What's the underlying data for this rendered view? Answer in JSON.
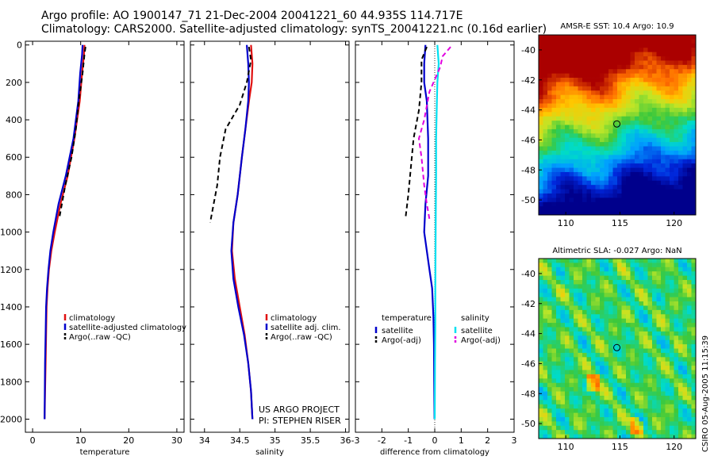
{
  "header": {
    "line1": "Argo profile: AO 1900147_71 21-Dec-2004 20041221_60 44.935S 114.717E",
    "line2": "Climatology: CARS2000. Satellite-adjusted climatology: synTS_20041221.nc (0.16d earlier)"
  },
  "side_stamp": "CSIRO 05-Aug-2005 11:15:39",
  "credit": {
    "line1": "US ARGO PROJECT",
    "line2": "PI: STEPHEN RISER"
  },
  "colors": {
    "red": "#e01010",
    "blue": "#0000cc",
    "black": "#000000",
    "cyan": "#00e0f0",
    "magenta": "#e000e0"
  },
  "chart_data": [
    {
      "type": "line",
      "xlabel": "temperature",
      "ylabel": "",
      "xlim": [
        -1.5,
        31.5
      ],
      "ylim": [
        2070,
        -20
      ],
      "y_reversed": true,
      "xticks": [
        0,
        10,
        20,
        30
      ],
      "yticks": [
        0,
        200,
        400,
        600,
        800,
        1000,
        1200,
        1400,
        1600,
        1800,
        2000
      ],
      "legend_position": "lower-left",
      "series": [
        {
          "name": "climatology",
          "color": "red",
          "style": "solid",
          "x": [
            10.8,
            10.7,
            10.3,
            9.8,
            8.7,
            7.3,
            5.8,
            4.6,
            3.9,
            3.4,
            3.1,
            2.9,
            2.8,
            2.7,
            2.6,
            2.5
          ],
          "y": [
            0,
            50,
            150,
            300,
            500,
            700,
            850,
            1000,
            1100,
            1200,
            1300,
            1400,
            1550,
            1700,
            1850,
            2000
          ]
        },
        {
          "name": "satellite-adjusted climatology",
          "color": "blue",
          "style": "solid",
          "x": [
            10.4,
            10.3,
            9.9,
            9.5,
            8.5,
            6.9,
            5.4,
            4.3,
            3.7,
            3.3,
            3.0,
            2.8,
            2.7,
            2.6,
            2.55,
            2.5
          ],
          "y": [
            0,
            50,
            150,
            300,
            500,
            700,
            850,
            1000,
            1100,
            1200,
            1300,
            1400,
            1550,
            1700,
            1850,
            2000
          ]
        },
        {
          "name": "Argo(..raw -QC)",
          "color": "black",
          "style": "dashed",
          "x": [
            11.0,
            10.8,
            10.4,
            9.6,
            9.0,
            8.1,
            6.8,
            5.6
          ],
          "y": [
            10,
            50,
            150,
            300,
            450,
            600,
            750,
            920
          ]
        }
      ]
    },
    {
      "type": "line",
      "xlabel": "salinity",
      "ylabel": "",
      "xlim": [
        33.8,
        36.05
      ],
      "ylim": [
        2070,
        -20
      ],
      "y_reversed": true,
      "xticks": [
        34,
        34.5,
        35,
        35.5,
        36
      ],
      "legend_position": "lower-right",
      "series": [
        {
          "name": "climatology",
          "color": "red",
          "style": "solid",
          "x": [
            34.66,
            34.68,
            34.67,
            34.63,
            34.58,
            34.53,
            34.47,
            34.41,
            34.39,
            34.43,
            34.5,
            34.57,
            34.62,
            34.66,
            34.68
          ],
          "y": [
            0,
            100,
            200,
            300,
            450,
            600,
            800,
            950,
            1100,
            1250,
            1400,
            1550,
            1700,
            1850,
            2000
          ]
        },
        {
          "name": "satellite adj. clim.",
          "color": "blue",
          "style": "solid",
          "x": [
            34.6,
            34.62,
            34.63,
            34.62,
            34.58,
            34.53,
            34.47,
            34.41,
            34.38,
            34.41,
            34.48,
            34.56,
            34.62,
            34.66,
            34.68
          ],
          "y": [
            0,
            100,
            200,
            300,
            450,
            600,
            800,
            950,
            1100,
            1250,
            1400,
            1550,
            1700,
            1850,
            2000
          ]
        },
        {
          "name": "Argo(..raw -QC)",
          "color": "black",
          "style": "dashed",
          "x": [
            34.63,
            34.66,
            34.6,
            34.5,
            34.3,
            34.22,
            34.18,
            34.13,
            34.08
          ],
          "y": [
            10,
            80,
            200,
            320,
            450,
            600,
            750,
            850,
            950
          ]
        }
      ]
    },
    {
      "type": "line",
      "xlabel": "difference from climatology",
      "ylabel": "",
      "xlim": [
        -3,
        3
      ],
      "ylim": [
        2070,
        -20
      ],
      "y_reversed": true,
      "xticks": [
        -3,
        -2,
        -1,
        0,
        1,
        2,
        3
      ],
      "zero_line": true,
      "legend_position": "lower-center",
      "series": [
        {
          "name": "satellite",
          "group": "temperature",
          "color": "blue",
          "style": "solid",
          "x": [
            -0.35,
            -0.4,
            -0.4,
            -0.3,
            -0.25,
            -0.25,
            -0.35,
            -0.4,
            -0.3,
            -0.2,
            -0.1,
            -0.05,
            -0.03,
            -0.02,
            -0.01
          ],
          "y": [
            0,
            100,
            200,
            300,
            500,
            700,
            850,
            1000,
            1100,
            1200,
            1300,
            1450,
            1600,
            1800,
            2000
          ]
        },
        {
          "name": "Argo(-adj)",
          "group": "temperature",
          "color": "black",
          "style": "dashed",
          "x": [
            -0.3,
            -0.5,
            -0.5,
            -0.6,
            -0.8,
            -0.9,
            -1.0,
            -1.1
          ],
          "y": [
            10,
            80,
            200,
            350,
            500,
            650,
            800,
            920
          ]
        },
        {
          "name": "satellite",
          "group": "salinity",
          "color": "cyan",
          "style": "solid",
          "x": [
            0.1,
            0.15,
            0.1,
            0.08,
            0.05,
            0.05,
            0.04,
            0.03,
            0.02,
            0.02,
            0.01,
            0.0
          ],
          "y": [
            0,
            100,
            200,
            300,
            500,
            700,
            900,
            1100,
            1300,
            1500,
            1700,
            2000
          ]
        },
        {
          "name": "Argo(-adj)",
          "group": "salinity",
          "color": "magenta",
          "style": "dashed",
          "x": [
            0.6,
            0.3,
            0.2,
            -0.2,
            -0.4,
            -0.6,
            -0.5,
            -0.4,
            -0.3,
            -0.2
          ],
          "y": [
            10,
            60,
            120,
            250,
            400,
            500,
            600,
            750,
            850,
            930
          ]
        }
      ]
    },
    {
      "type": "heatmap",
      "title": "AMSR-E SST: 10.4 Argo: 10.9",
      "xlim": [
        107.5,
        122
      ],
      "ylim": [
        -51,
        -39
      ],
      "xticks": [
        110,
        115,
        120
      ],
      "yticks": [
        -40,
        -42,
        -44,
        -46,
        -48,
        -50
      ],
      "marker": {
        "lon": 114.717,
        "lat": -44.935
      }
    },
    {
      "type": "heatmap",
      "title": "Altimetric SLA: -0.027 Argo: NaN",
      "xlim": [
        107.5,
        122
      ],
      "ylim": [
        -51,
        -39
      ],
      "xticks": [
        110,
        115,
        120
      ],
      "yticks": [
        -40,
        -42,
        -44,
        -46,
        -48,
        -50
      ],
      "marker": {
        "lon": 114.717,
        "lat": -44.935
      }
    }
  ]
}
